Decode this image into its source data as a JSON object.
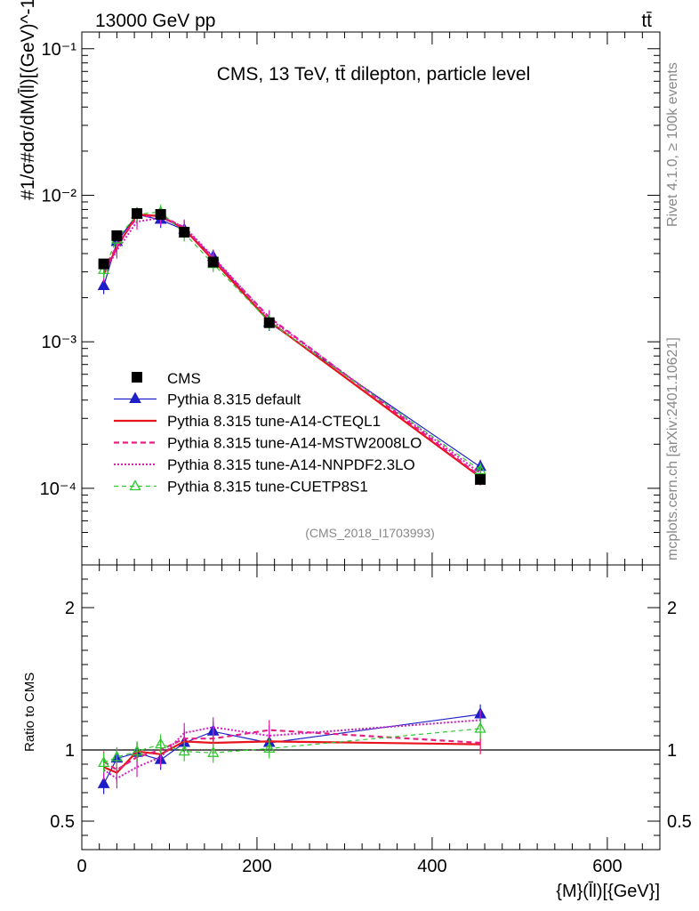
{
  "header": {
    "beam_label": "13000 GeV pp",
    "process_label": "tt̄",
    "plot_title": "CMS, 13 TeV, tt̄ dilepton, particle level",
    "analysis_id": "(CMS_2018_I1703993)",
    "side_label_top": "Rivet 4.1.0, ≥ 100k events",
    "side_label_bottom": "mcplots.cern.ch [arXiv:2401.10621]"
  },
  "chart_data": [
    {
      "type": "line",
      "panel": "main",
      "ylabel": "#1/σ#dσ/dM(l̄l)[(GeV)^-1]",
      "yscale": "log",
      "ylim": [
        3e-05,
        0.13
      ],
      "xlim": [
        0,
        660
      ],
      "yticks": [
        {
          "value": 0.1,
          "label": "10⁻¹"
        },
        {
          "value": 0.01,
          "label": "10⁻²"
        },
        {
          "value": 0.001,
          "label": "10⁻³"
        },
        {
          "value": 0.0001,
          "label": "10⁻⁴"
        }
      ],
      "x": [
        25,
        40,
        63,
        90,
        117,
        150,
        214,
        455
      ],
      "data_series": {
        "name": "CMS",
        "values": [
          0.0034,
          0.0053,
          0.0075,
          0.0074,
          0.0056,
          0.0035,
          0.00135,
          0.000115
        ]
      },
      "series": [
        {
          "name": "Pythia 8.315 default",
          "color": "#1f1fc8",
          "values": [
            0.0024,
            0.0048,
            0.0074,
            0.0068,
            0.0058,
            0.0038,
            0.00135,
            0.00014
          ]
        },
        {
          "name": "Pythia 8.315 tune-A14-CTEQL1",
          "color": "#e8141e",
          "values": [
            0.0029,
            0.0044,
            0.0074,
            0.0072,
            0.0059,
            0.0036,
            0.00138,
            0.000119
          ]
        },
        {
          "name": "Pythia 8.315 tune-A14-MSTW2008LO",
          "color": "#e61e82",
          "values": [
            0.0031,
            0.0045,
            0.0071,
            0.0073,
            0.006,
            0.0037,
            0.00147,
            0.000121
          ]
        },
        {
          "name": "Pythia 8.315 tune-A14-NNPDF2.3LO",
          "color": "#d21ec3",
          "values": [
            0.0029,
            0.0042,
            0.0066,
            0.007,
            0.0061,
            0.0038,
            0.00144,
            0.000127
          ]
        },
        {
          "name": "Pythia 8.315 tune-CUETP8S1",
          "color": "#32c832",
          "values": [
            0.0031,
            0.005,
            0.0074,
            0.0077,
            0.0055,
            0.0034,
            0.00137,
            0.000133
          ]
        }
      ]
    },
    {
      "type": "line",
      "panel": "ratio",
      "ylabel": "Ratio to CMS",
      "xlabel": "{M}(l̄l)[{GeV}]",
      "xlim": [
        0,
        660
      ],
      "ylim": [
        0.3,
        2.3
      ],
      "xticks": [
        0,
        200,
        400,
        600
      ],
      "yticks": [
        0.5,
        1,
        2
      ],
      "x": [
        25,
        40,
        63,
        90,
        117,
        150,
        214,
        455
      ],
      "series": [
        {
          "name": "Pythia 8.315 default",
          "values": [
            0.76,
            0.94,
            0.98,
            0.93,
            1.05,
            1.13,
            1.05,
            1.25
          ]
        },
        {
          "name": "Pythia 8.315 tune-A14-CTEQL1",
          "values": [
            0.88,
            0.84,
            0.99,
            0.97,
            1.06,
            1.05,
            1.06,
            1.04
          ]
        },
        {
          "name": "Pythia 8.315 tune-A14-MSTW2008LO",
          "values": [
            0.92,
            0.86,
            0.95,
            1.0,
            1.08,
            1.08,
            1.14,
            1.05
          ]
        },
        {
          "name": "Pythia 8.315 tune-A14-NNPDF2.3LO",
          "values": [
            0.86,
            0.8,
            0.88,
            0.95,
            1.12,
            1.16,
            1.1,
            1.21
          ]
        },
        {
          "name": "Pythia 8.315 tune-CUETP8S1",
          "values": [
            0.91,
            0.95,
            0.99,
            1.04,
            0.99,
            0.98,
            1.01,
            1.15
          ]
        }
      ]
    }
  ]
}
